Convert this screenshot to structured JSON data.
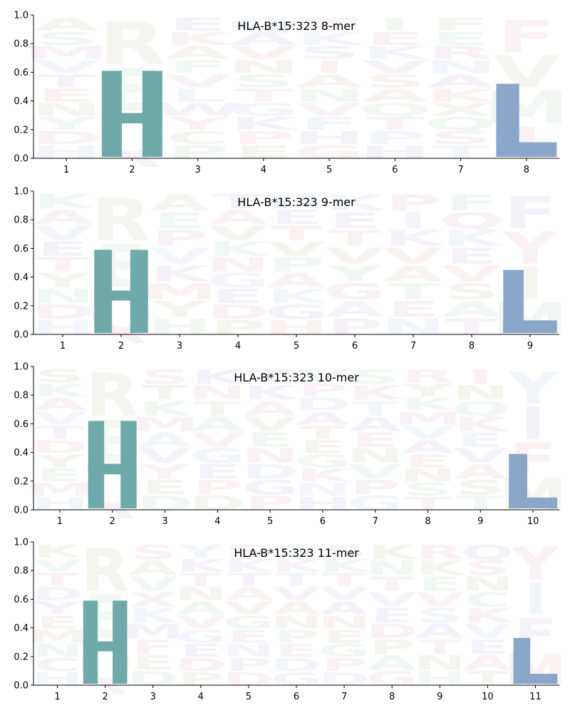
{
  "colors": {
    "H": "#6fa9a9",
    "L": "#8aa6c8",
    "faint_palette": [
      "#e9eef6",
      "#f3e6ee",
      "#e6f3ea",
      "#efece3",
      "#f6e8e8",
      "#ece8f3"
    ]
  },
  "chart_data": [
    {
      "type": "sequence-logo",
      "title": "HLA-B*15:323 8-mer",
      "positions": [
        "1",
        "2",
        "3",
        "4",
        "5",
        "6",
        "7",
        "8"
      ],
      "ylim": [
        0,
        1.0
      ],
      "yticks": [
        "0.0",
        "0.2",
        "0.4",
        "0.6",
        "0.8",
        "1.0"
      ],
      "grid": false,
      "highlight": [
        {
          "position": "2",
          "letter": "H",
          "height": 0.6
        },
        {
          "position": "8",
          "letter": "L",
          "height": 0.51
        }
      ],
      "faint_letters": [
        {
          "position": "1",
          "letters": [
            "H",
            "D",
            "Y",
            "N",
            "E",
            "T",
            "V",
            "M",
            "S",
            "A"
          ]
        },
        {
          "position": "2",
          "letters": [
            "Q",
            "E",
            "R"
          ]
        },
        {
          "position": "3",
          "letters": [
            "P",
            "C",
            "Y",
            "W",
            "L",
            "V",
            "F",
            "A",
            "K",
            "E"
          ]
        },
        {
          "position": "4",
          "letters": [
            "E",
            "P",
            "K",
            "G",
            "T",
            "S",
            "N",
            "V",
            "A",
            "Q"
          ]
        },
        {
          "position": "5",
          "letters": [
            "G",
            "H",
            "F",
            "V",
            "N",
            "A",
            "I",
            "S",
            "K",
            "T"
          ]
        },
        {
          "position": "6",
          "letters": [
            "H",
            "P",
            "T",
            "Q",
            "A",
            "S",
            "V",
            "K",
            "E",
            "I"
          ]
        },
        {
          "position": "7",
          "letters": [
            "T",
            "S",
            "Q",
            "X",
            "K",
            "A",
            "N",
            "R",
            "E",
            "F"
          ]
        },
        {
          "position": "8",
          "letters": [
            "I",
            "M",
            "V",
            "F"
          ]
        }
      ]
    },
    {
      "type": "sequence-logo",
      "title": "HLA-B*15:323 9-mer",
      "positions": [
        "1",
        "2",
        "3",
        "4",
        "5",
        "6",
        "7",
        "8",
        "9"
      ],
      "ylim": [
        0,
        1.0
      ],
      "yticks": [
        "0.0",
        "0.2",
        "0.4",
        "0.6",
        "0.8",
        "1.0"
      ],
      "grid": false,
      "highlight": [
        {
          "position": "2",
          "letter": "H",
          "height": 0.58
        },
        {
          "position": "9",
          "letter": "L",
          "height": 0.44
        }
      ],
      "faint_letters": [
        {
          "position": "1",
          "letters": [
            "H",
            "D",
            "N",
            "Y",
            "T",
            "E",
            "V",
            "A",
            "K"
          ]
        },
        {
          "position": "2",
          "letters": [
            "Q",
            "E",
            "R"
          ]
        },
        {
          "position": "3",
          "letters": [
            "H",
            "Y",
            "M",
            "K",
            "V",
            "P",
            "E",
            "A"
          ]
        },
        {
          "position": "4",
          "letters": [
            "P",
            "D",
            "E",
            "G",
            "N",
            "K",
            "V",
            "A",
            "T"
          ]
        },
        {
          "position": "5",
          "letters": [
            "H",
            "G",
            "K",
            "A",
            "P",
            "V",
            "T",
            "E",
            "R"
          ]
        },
        {
          "position": "6",
          "letters": [
            "P",
            "A",
            "G",
            "Y",
            "V",
            "T",
            "E",
            "K"
          ]
        },
        {
          "position": "7",
          "letters": [
            "N",
            "E",
            "T",
            "A",
            "V",
            "K",
            "I",
            "P"
          ]
        },
        {
          "position": "8",
          "letters": [
            "T",
            "A",
            "S",
            "V",
            "E",
            "K",
            "Q",
            "F"
          ]
        },
        {
          "position": "9",
          "letters": [
            "M",
            "I",
            "Y",
            "F"
          ]
        }
      ]
    },
    {
      "type": "sequence-logo",
      "title": "HLA-B*15:323 10-mer",
      "positions": [
        "1",
        "2",
        "3",
        "4",
        "5",
        "6",
        "7",
        "8",
        "9",
        "10"
      ],
      "ylim": [
        0,
        1.0
      ],
      "yticks": [
        "0.0",
        "0.2",
        "0.4",
        "0.6",
        "0.8",
        "1.0"
      ],
      "grid": false,
      "highlight": [
        {
          "position": "2",
          "letter": "H",
          "height": 0.61
        },
        {
          "position": "10",
          "letter": "L",
          "height": 0.38
        }
      ],
      "faint_letters": [
        {
          "position": "1",
          "letters": [
            "H",
            "M",
            "E",
            "Y",
            "D",
            "T",
            "V",
            "A",
            "K",
            "S"
          ]
        },
        {
          "position": "2",
          "letters": [
            "Q",
            "E",
            "R"
          ]
        },
        {
          "position": "3",
          "letters": [
            "D",
            "E",
            "Y",
            "V",
            "A",
            "M",
            "K",
            "T",
            "S"
          ]
        },
        {
          "position": "4",
          "letters": [
            "D",
            "P",
            "E",
            "G",
            "V",
            "A",
            "T",
            "N",
            "K"
          ]
        },
        {
          "position": "5",
          "letters": [
            "P",
            "G",
            "D",
            "N",
            "E",
            "V",
            "A",
            "K",
            "T"
          ]
        },
        {
          "position": "6",
          "letters": [
            "H",
            "N",
            "K",
            "G",
            "E",
            "T",
            "A",
            "D",
            "P",
            "V"
          ]
        },
        {
          "position": "7",
          "letters": [
            "G",
            "P",
            "V",
            "N",
            "E",
            "A",
            "T",
            "K",
            "S"
          ]
        },
        {
          "position": "8",
          "letters": [
            "T",
            "S",
            "N",
            "E",
            "A",
            "V",
            "M",
            "K",
            "Y",
            "R"
          ]
        },
        {
          "position": "9",
          "letters": [
            "T",
            "S",
            "A",
            "V",
            "E",
            "K",
            "Q",
            "N",
            "I"
          ]
        },
        {
          "position": "10",
          "letters": [
            "M",
            "F",
            "I",
            "Y"
          ]
        }
      ]
    },
    {
      "type": "sequence-logo",
      "title": "HLA-B*15:323 11-mer",
      "positions": [
        "1",
        "2",
        "3",
        "4",
        "5",
        "6",
        "7",
        "8",
        "9",
        "10",
        "11"
      ],
      "ylim": [
        0,
        1.0
      ],
      "yticks": [
        "0.0",
        "0.2",
        "0.4",
        "0.6",
        "0.8",
        "1.0"
      ],
      "grid": false,
      "highlight": [
        {
          "position": "2",
          "letter": "H",
          "height": 0.58
        },
        {
          "position": "11",
          "letter": "L",
          "height": 0.32
        }
      ],
      "faint_letters": [
        {
          "position": "1",
          "letters": [
            "H",
            "C",
            "N",
            "M",
            "E",
            "Y",
            "D",
            "T",
            "V",
            "K"
          ]
        },
        {
          "position": "2",
          "letters": [
            "Q",
            "E",
            "R"
          ]
        },
        {
          "position": "3",
          "letters": [
            "D",
            "E",
            "F",
            "M",
            "K",
            "X",
            "V",
            "A",
            "S"
          ]
        },
        {
          "position": "4",
          "letters": [
            "P",
            "D",
            "E",
            "G",
            "V",
            "A",
            "N",
            "T",
            "K",
            "Y"
          ]
        },
        {
          "position": "5",
          "letters": [
            "D",
            "P",
            "N",
            "E",
            "G",
            "V",
            "A",
            "T",
            "K",
            "S"
          ]
        },
        {
          "position": "6",
          "letters": [
            "G",
            "D",
            "E",
            "P",
            "N",
            "A",
            "V",
            "T",
            "K",
            "S"
          ]
        },
        {
          "position": "7",
          "letters": [
            "D",
            "P",
            "G",
            "E",
            "N",
            "A",
            "V",
            "T",
            "K",
            "S"
          ]
        },
        {
          "position": "8",
          "letters": [
            "G",
            "A",
            "P",
            "D",
            "E",
            "V",
            "T",
            "N",
            "K"
          ]
        },
        {
          "position": "9",
          "letters": [
            "H",
            "N",
            "T",
            "A",
            "S",
            "V",
            "E",
            "K",
            "R"
          ]
        },
        {
          "position": "10",
          "letters": [
            "T",
            "A",
            "E",
            "V",
            "K",
            "C",
            "N",
            "S",
            "Q"
          ]
        },
        {
          "position": "11",
          "letters": [
            "M",
            "F",
            "I",
            "Y"
          ]
        }
      ]
    }
  ]
}
